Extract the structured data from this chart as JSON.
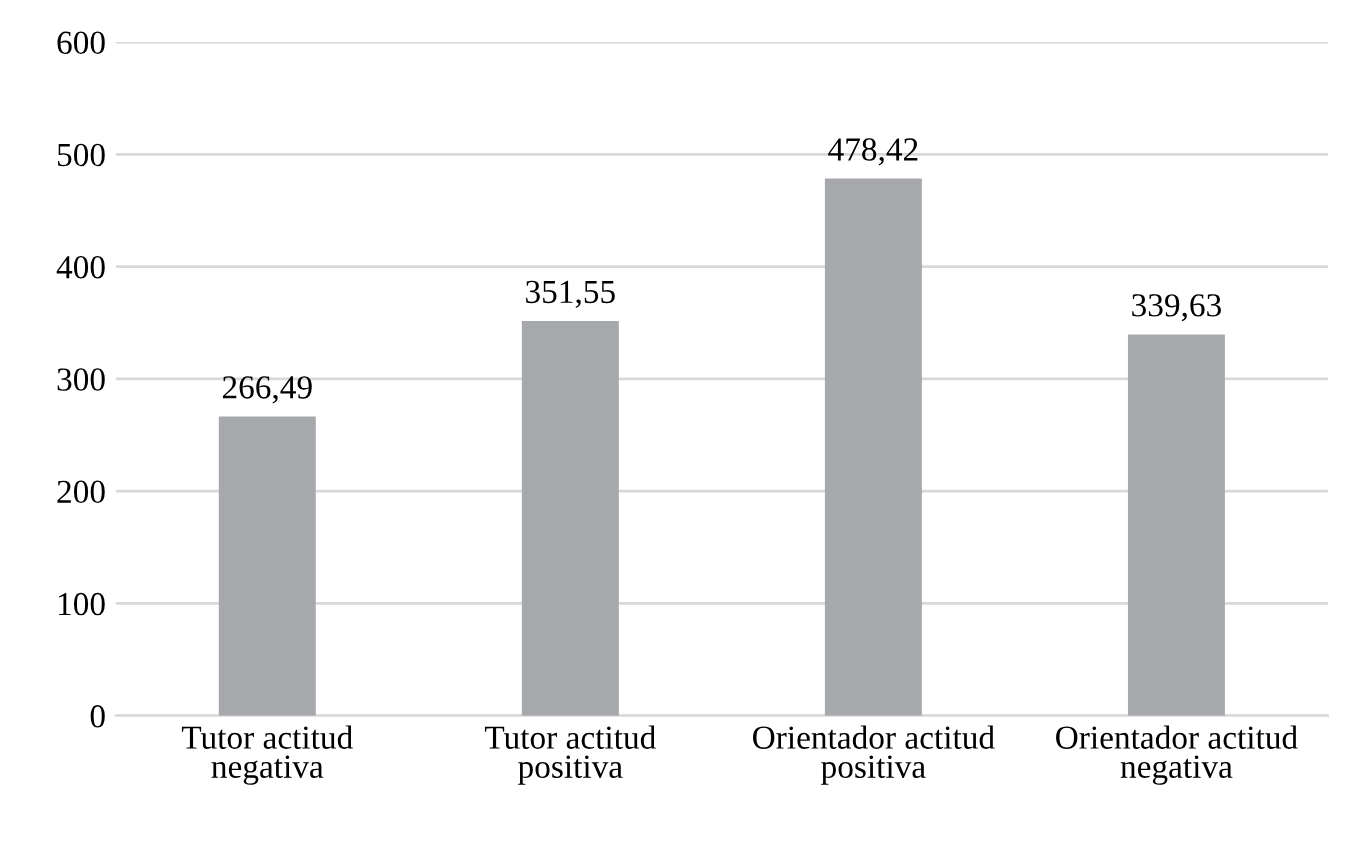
{
  "chart_data": {
    "type": "bar",
    "categories": [
      "Tutor actitud negativa",
      "Tutor actitud positiva",
      "Orientador actitud positiva",
      "Orientador actitud negativa"
    ],
    "values": [
      266.49,
      351.55,
      478.42,
      339.63
    ],
    "value_labels": [
      "266,49",
      "351,55",
      "478,42",
      "339,63"
    ],
    "color": "#a6a8ab",
    "ylim": [
      0,
      600
    ],
    "yticks": [
      0,
      100,
      200,
      300,
      400,
      500,
      600
    ],
    "grid": "y",
    "legend": false
  }
}
